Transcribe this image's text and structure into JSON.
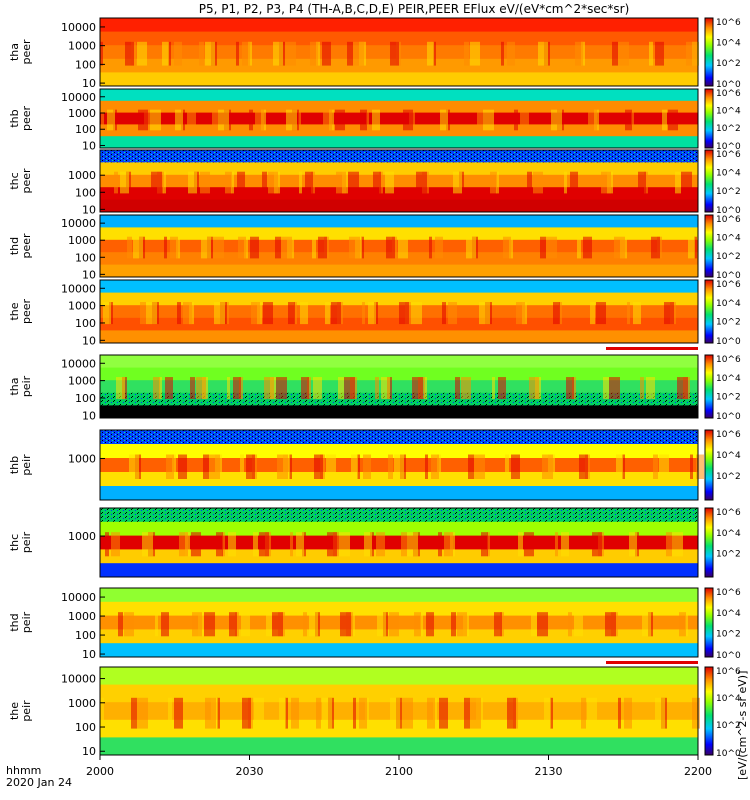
{
  "title": "P5, P1, P2, P3, P4 (TH-A,B,C,D,E) PEIR,PEER EFlux eV/(eV*cm^2*sec*sr)",
  "time_axis": {
    "label_top": "hhmm",
    "label_bottom": "2020 Jan 24",
    "ticks": [
      "2000",
      "2030",
      "2100",
      "2130",
      "2200"
    ]
  },
  "colorbar_label": "[eV/(cm^2-s sr eV)]",
  "chart_data": [
    {
      "type": "heatmap",
      "panel": "tha-peer",
      "ylabel": [
        "tha",
        "peer"
      ],
      "yscale": "log",
      "ylim": [
        7,
        30000
      ],
      "ytick_labels": [
        "10",
        "100",
        "1000",
        "10000"
      ],
      "colorbar_scale": "log",
      "clim": [
        1,
        1000000
      ],
      "colorbar_ticks": [
        "10^0",
        "10^2",
        "10^4",
        "10^6"
      ],
      "data_gap_bar": false
    },
    {
      "type": "heatmap",
      "panel": "thb-peer",
      "ylabel": [
        "thb",
        "peer"
      ],
      "yscale": "log",
      "ylim": [
        7,
        30000
      ],
      "ytick_labels": [
        "10",
        "100",
        "1000",
        "10000"
      ],
      "colorbar_scale": "log",
      "clim": [
        1,
        1000000
      ],
      "colorbar_ticks": [
        "10^0",
        "10^2",
        "10^4",
        "10^6"
      ],
      "data_gap_bar": false
    },
    {
      "type": "heatmap",
      "panel": "thc-peer",
      "ylabel": [
        "thc",
        "peer"
      ],
      "yscale": "log",
      "ylim": [
        7,
        30000
      ],
      "ytick_labels": [
        "10",
        "100",
        "1000"
      ],
      "colorbar_scale": "log",
      "clim": [
        1,
        1000000
      ],
      "colorbar_ticks": [
        "10^0",
        "10^2",
        "10^4",
        "10^6"
      ],
      "data_gap_bar": false
    },
    {
      "type": "heatmap",
      "panel": "thd-peer",
      "ylabel": [
        "thd",
        "peer"
      ],
      "yscale": "log",
      "ylim": [
        7,
        30000
      ],
      "ytick_labels": [
        "10",
        "100",
        "1000",
        "10000"
      ],
      "colorbar_scale": "log",
      "clim": [
        1,
        1000000
      ],
      "colorbar_ticks": [
        "10^0",
        "10^2",
        "10^4",
        "10^6"
      ],
      "data_gap_bar": false
    },
    {
      "type": "heatmap",
      "panel": "the-peer",
      "ylabel": [
        "the",
        "peer"
      ],
      "yscale": "log",
      "ylim": [
        7,
        30000
      ],
      "ytick_labels": [
        "10",
        "100",
        "1000",
        "10000"
      ],
      "colorbar_scale": "log",
      "clim": [
        1,
        1000000
      ],
      "colorbar_ticks": [
        "10^0",
        "10^2",
        "10^4",
        "10^6"
      ],
      "data_gap_bar": true
    },
    {
      "type": "heatmap",
      "panel": "tha-peir",
      "ylabel": [
        "tha",
        "peir"
      ],
      "yscale": "log",
      "ylim": [
        7,
        30000
      ],
      "ytick_labels": [
        "10",
        "100",
        "1000",
        "10000"
      ],
      "colorbar_scale": "log",
      "clim": [
        1,
        1000000
      ],
      "colorbar_ticks": [
        "10^0",
        "10^2",
        "10^4",
        "10^6"
      ],
      "data_gap_bar": false
    },
    {
      "type": "heatmap",
      "panel": "thb-peir",
      "ylabel": [
        "thb",
        "peir"
      ],
      "yscale": "log",
      "ylim": [
        7,
        30000
      ],
      "ytick_labels": [
        "1000"
      ],
      "colorbar_scale": "log",
      "clim": [
        10,
        1000000
      ],
      "colorbar_ticks": [
        "10^2",
        "10^4",
        "10^6"
      ],
      "data_gap_bar": false
    },
    {
      "type": "heatmap",
      "panel": "thc-peir",
      "ylabel": [
        "thc",
        "peir"
      ],
      "yscale": "log",
      "ylim": [
        7,
        30000
      ],
      "ytick_labels": [
        "1000"
      ],
      "colorbar_scale": "log",
      "clim": [
        10,
        1000000
      ],
      "colorbar_ticks": [
        "10^2",
        "10^4",
        "10^6"
      ],
      "data_gap_bar": false
    },
    {
      "type": "heatmap",
      "panel": "thd-peir",
      "ylabel": [
        "thd",
        "peir"
      ],
      "yscale": "log",
      "ylim": [
        7,
        30000
      ],
      "ytick_labels": [
        "10",
        "100",
        "1000",
        "10000"
      ],
      "colorbar_scale": "log",
      "clim": [
        1,
        1000000
      ],
      "colorbar_ticks": [
        "10^0",
        "10^2",
        "10^4",
        "10^6"
      ],
      "data_gap_bar": true
    },
    {
      "type": "heatmap",
      "panel": "the-peir",
      "ylabel": [
        "the",
        "peir"
      ],
      "yscale": "log",
      "ylim": [
        7,
        30000
      ],
      "ytick_labels": [
        "10",
        "100",
        "1000",
        "10000"
      ],
      "colorbar_scale": "log",
      "clim": [
        1,
        1000000
      ],
      "colorbar_ticks": [
        "10^0",
        "10^2",
        "10^4",
        "10^6"
      ],
      "data_gap_bar": false
    }
  ]
}
